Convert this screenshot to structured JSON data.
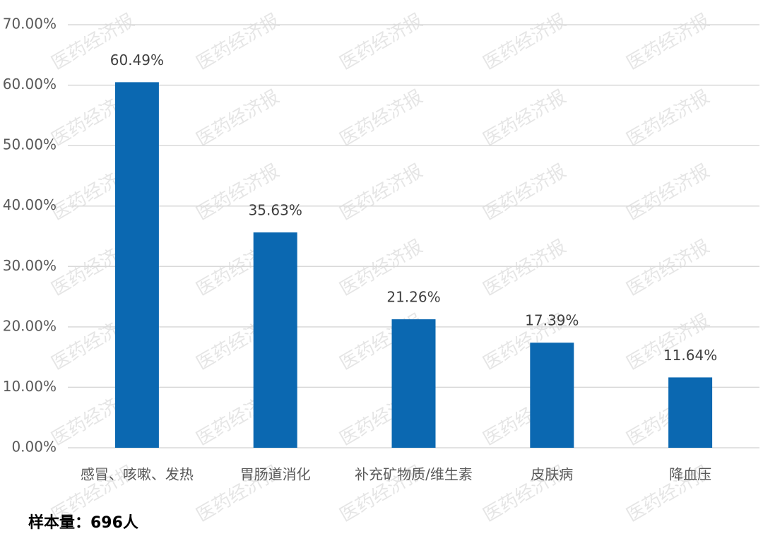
{
  "chart_data": {
    "type": "bar",
    "categories": [
      "感冒、咳嗽、发热",
      "胃肠道消化",
      "补充矿物质/维生素",
      "皮肤病",
      "降血压"
    ],
    "values": [
      60.49,
      35.63,
      21.26,
      17.39,
      11.64
    ],
    "value_labels": [
      "60.49%",
      "35.63%",
      "21.26%",
      "17.39%",
      "11.64%"
    ],
    "color": "#0b68b1",
    "ylim": [
      0,
      70
    ],
    "yticks": [
      {
        "value": 0,
        "label": "0.00%"
      },
      {
        "value": 10,
        "label": "10.00%"
      },
      {
        "value": 20,
        "label": "20.00%"
      },
      {
        "value": 30,
        "label": "30.00%"
      },
      {
        "value": 40,
        "label": "40.00%"
      },
      {
        "value": 50,
        "label": "50.00%"
      },
      {
        "value": 60,
        "label": "60.00%"
      },
      {
        "value": 70,
        "label": "70.00%"
      }
    ],
    "grid": true,
    "note": "样本量：696人",
    "watermark": "医药经济报"
  }
}
